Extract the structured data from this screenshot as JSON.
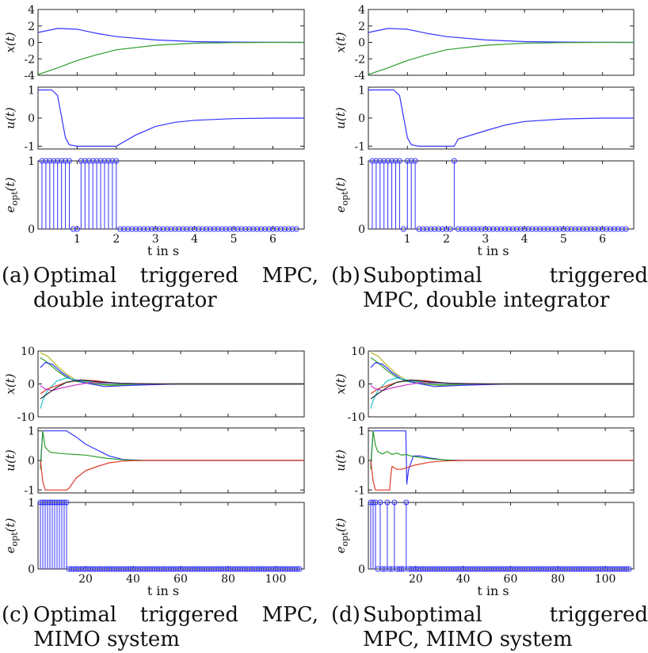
{
  "colors": {
    "blue": "#3333ff",
    "green": "#2e9e2e",
    "red": "#e03a2a",
    "cyan": "#22c5d0",
    "magenta": "#cc33cc",
    "olive": "#b8b82a",
    "dark": "#2a2a2a"
  },
  "labels": {
    "x_label": "x(t)",
    "u_label": "u(t)",
    "e_label": "e",
    "e_sub": "opt",
    "e_tail": "(t)",
    "t_axis": "t in s"
  },
  "captions": [
    {
      "tag": "(a)",
      "line1_words": [
        "Optimal",
        "triggered",
        "MPC,"
      ],
      "line2": "double integrator"
    },
    {
      "tag": "(b)",
      "line1_words": [
        "Suboptimal",
        "triggered"
      ],
      "line2": "MPC, double integrator"
    },
    {
      "tag": "(c)",
      "line1_words": [
        "Optimal",
        "triggered",
        "MPC,"
      ],
      "line2": "MIMO system"
    },
    {
      "tag": "(d)",
      "line1_words": [
        "Suboptimal",
        "triggered"
      ],
      "line2": "MPC, MIMO system"
    }
  ],
  "chart_data": [
    {
      "id": "a",
      "type": "line",
      "x_axis": {
        "xlim": [
          0,
          6.8
        ],
        "xticks": [
          1,
          2,
          3,
          4,
          5,
          6
        ],
        "xlabel": "t in s"
      },
      "state": {
        "ylabel": "x(t)",
        "ylim": [
          -4,
          4
        ],
        "yticks": [
          -4,
          -2,
          0,
          2,
          4
        ],
        "series": [
          {
            "color": "blue",
            "x": [
              0,
              0.5,
              1,
              1.5,
              2,
              3,
              4,
              5,
              6,
              6.8
            ],
            "y": [
              1.2,
              1.7,
              1.6,
              1.1,
              0.7,
              0.3,
              0.1,
              0.04,
              0.01,
              0
            ]
          },
          {
            "color": "green",
            "x": [
              0,
              0.5,
              1,
              1.5,
              2,
              3,
              4,
              5,
              6,
              6.8
            ],
            "y": [
              -3.9,
              -3.1,
              -2.2,
              -1.5,
              -0.9,
              -0.35,
              -0.1,
              -0.03,
              0,
              0
            ]
          }
        ]
      },
      "input": {
        "ylabel": "u(t)",
        "ylim": [
          -1.1,
          1.1
        ],
        "yticks": [
          -1,
          0,
          1
        ],
        "series": [
          {
            "color": "blue",
            "x": [
              0,
              0.3,
              0.35,
              0.5,
              0.7,
              0.8,
              1.0,
              1.5,
              2.0,
              2.5,
              3,
              3.5,
              4,
              5,
              6,
              6.8
            ],
            "y": [
              1,
              1,
              1,
              0.8,
              -0.7,
              -0.95,
              -1,
              -1,
              -1,
              -0.6,
              -0.3,
              -0.15,
              -0.08,
              -0.02,
              0,
              0
            ]
          }
        ]
      },
      "trigger": {
        "ylabel": "e_opt(t)",
        "ylim": [
          0,
          1
        ],
        "yticks": [
          0,
          1
        ],
        "step": 0.1,
        "t_end": 6.6,
        "ones": [
          0.1,
          0.2,
          0.3,
          0.4,
          0.5,
          0.6,
          0.7,
          0.8,
          1.1,
          1.2,
          1.3,
          1.4,
          1.5,
          1.6,
          1.7,
          1.8,
          1.9,
          2.0
        ]
      }
    },
    {
      "id": "b",
      "type": "line",
      "x_axis": {
        "xlim": [
          0,
          6.8
        ],
        "xticks": [
          1,
          2,
          3,
          4,
          5,
          6
        ],
        "xlabel": "t in s"
      },
      "state": {
        "ylabel": "x(t)",
        "ylim": [
          -4,
          4
        ],
        "yticks": [
          -4,
          -2,
          0,
          2,
          4
        ],
        "series": [
          {
            "color": "blue",
            "x": [
              0,
              0.5,
              1,
              1.5,
              2,
              3,
              4,
              5,
              6,
              6.8
            ],
            "y": [
              1.2,
              1.7,
              1.6,
              1.1,
              0.7,
              0.3,
              0.1,
              0.04,
              0.01,
              0
            ]
          },
          {
            "color": "green",
            "x": [
              0,
              0.5,
              1,
              1.5,
              2,
              3,
              4,
              5,
              6,
              6.8
            ],
            "y": [
              -3.9,
              -3.1,
              -2.2,
              -1.5,
              -0.9,
              -0.35,
              -0.1,
              -0.03,
              0,
              0
            ]
          }
        ]
      },
      "input": {
        "ylabel": "u(t)",
        "ylim": [
          -1.1,
          1.1
        ],
        "yticks": [
          -1,
          0,
          1
        ],
        "series": [
          {
            "color": "blue",
            "x": [
              0,
              0.6,
              0.65,
              0.8,
              1.0,
              1.1,
              1.3,
              2.1,
              2.2,
              2.3,
              3,
              3.5,
              4,
              5,
              6,
              6.8
            ],
            "y": [
              1,
              1,
              1,
              0.8,
              -0.7,
              -0.95,
              -1,
              -1,
              -1,
              -0.75,
              -0.45,
              -0.25,
              -0.12,
              -0.03,
              0,
              0
            ]
          }
        ]
      },
      "trigger": {
        "ylabel": "e_opt(t)",
        "ylim": [
          0,
          1
        ],
        "yticks": [
          0,
          1
        ],
        "step": 0.1,
        "t_end": 6.6,
        "ones": [
          0.1,
          0.2,
          0.3,
          0.4,
          0.5,
          0.6,
          0.7,
          0.8,
          1.0,
          1.1,
          1.2,
          2.2
        ]
      }
    },
    {
      "id": "c",
      "type": "line",
      "x_axis": {
        "xlim": [
          0,
          112
        ],
        "xticks": [
          20,
          40,
          60,
          80,
          100
        ],
        "xlabel": "t in s"
      },
      "state": {
        "ylabel": "x(t)",
        "ylim": [
          -10,
          10
        ],
        "yticks": [
          -10,
          0,
          10
        ],
        "series": [
          {
            "color": "olive",
            "x": [
              1,
              4,
              8,
              12,
              16,
              22,
              30,
              40,
              60,
              112
            ],
            "y": [
              9.5,
              8.5,
              5.5,
              3,
              1.2,
              0.3,
              -0.5,
              -0.2,
              0,
              0
            ]
          },
          {
            "color": "green",
            "x": [
              1,
              4,
              8,
              12,
              16,
              22,
              30,
              40,
              60,
              112
            ],
            "y": [
              8,
              6.5,
              4,
              2,
              0.8,
              0.1,
              -0.3,
              -0.1,
              0,
              0
            ]
          },
          {
            "color": "blue",
            "x": [
              1,
              3,
              6,
              10,
              14,
              20,
              28,
              40,
              60,
              112
            ],
            "y": [
              5,
              6.5,
              6,
              3.5,
              1.5,
              0.3,
              -0.8,
              -0.4,
              0,
              0
            ]
          },
          {
            "color": "cyan",
            "x": [
              1,
              2,
              4,
              8,
              12,
              18,
              26,
              40,
              60,
              112
            ],
            "y": [
              -7.5,
              -5,
              -2,
              1,
              1.8,
              1,
              0.2,
              0,
              0,
              0
            ]
          },
          {
            "color": "red",
            "x": [
              1,
              4,
              8,
              12,
              18,
              24,
              32,
              45,
              60,
              112
            ],
            "y": [
              -3,
              -1.5,
              -0.5,
              0.5,
              1.2,
              1,
              0.3,
              0,
              0,
              0
            ]
          },
          {
            "color": "magenta",
            "x": [
              1,
              3,
              6,
              10,
              16,
              22,
              30,
              45,
              60,
              112
            ],
            "y": [
              -0.5,
              -1.5,
              -2,
              -1.2,
              -0.3,
              0.4,
              0.3,
              0,
              0,
              0
            ]
          },
          {
            "color": "dark",
            "x": [
              1,
              4,
              8,
              12,
              18,
              26,
              35,
              50,
              112
            ],
            "y": [
              -4.5,
              -3,
              -1,
              0.5,
              1.2,
              0.6,
              0.2,
              0,
              0
            ]
          }
        ]
      },
      "input": {
        "ylabel": "u(t)",
        "ylim": [
          -1.1,
          1.1
        ],
        "yticks": [
          -1,
          0,
          1
        ],
        "series": [
          {
            "color": "blue",
            "x": [
              1,
              2,
              12,
              13,
              16,
              20,
              25,
              30,
              36,
              45,
              112
            ],
            "y": [
              -0.2,
              1,
              1,
              0.95,
              0.8,
              0.55,
              0.35,
              0.15,
              0.03,
              0,
              0
            ]
          },
          {
            "color": "green",
            "x": [
              1,
              2,
              3,
              5,
              8,
              12,
              16,
              20,
              28,
              36,
              45,
              112
            ],
            "y": [
              -0.3,
              1,
              0.45,
              0.28,
              0.25,
              0.22,
              0.2,
              0.18,
              0.08,
              0.02,
              0,
              0
            ]
          },
          {
            "color": "red",
            "x": [
              1,
              2,
              3,
              12,
              13,
              16,
              20,
              25,
              30,
              36,
              45,
              112
            ],
            "y": [
              0,
              -0.7,
              -1,
              -1,
              -0.95,
              -0.6,
              -0.35,
              -0.2,
              -0.08,
              -0.02,
              0,
              0
            ]
          }
        ]
      },
      "trigger": {
        "ylabel": "e_opt(t)",
        "ylim": [
          0,
          1
        ],
        "yticks": [
          0,
          1
        ],
        "step": 1,
        "t_end": 110,
        "ones": [
          1,
          2,
          3,
          4,
          5,
          6,
          7,
          8,
          9,
          10,
          11,
          12
        ]
      }
    },
    {
      "id": "d",
      "type": "line",
      "x_axis": {
        "xlim": [
          0,
          112
        ],
        "xticks": [
          20,
          40,
          60,
          80,
          100
        ],
        "xlabel": "t in s"
      },
      "state": {
        "ylabel": "x(t)",
        "ylim": [
          -10,
          10
        ],
        "yticks": [
          -10,
          0,
          10
        ],
        "series": [
          {
            "color": "olive",
            "x": [
              1,
              4,
              8,
              12,
              16,
              22,
              30,
              40,
              60,
              112
            ],
            "y": [
              9.5,
              8.5,
              5.5,
              3,
              1.2,
              0.3,
              -0.5,
              -0.2,
              0,
              0
            ]
          },
          {
            "color": "green",
            "x": [
              1,
              4,
              8,
              12,
              16,
              22,
              30,
              40,
              60,
              112
            ],
            "y": [
              8,
              6.5,
              4,
              2,
              0.8,
              0.1,
              -0.3,
              -0.1,
              0,
              0
            ]
          },
          {
            "color": "blue",
            "x": [
              1,
              3,
              6,
              10,
              14,
              20,
              28,
              40,
              60,
              112
            ],
            "y": [
              5,
              6.5,
              6,
              3.5,
              1.5,
              0.3,
              -0.8,
              -0.4,
              0,
              0
            ]
          },
          {
            "color": "cyan",
            "x": [
              1,
              2,
              4,
              8,
              12,
              18,
              26,
              40,
              60,
              112
            ],
            "y": [
              -7.5,
              -5,
              -2,
              1,
              1.8,
              1,
              0.2,
              0,
              0,
              0
            ]
          },
          {
            "color": "red",
            "x": [
              1,
              4,
              8,
              12,
              18,
              24,
              32,
              45,
              60,
              112
            ],
            "y": [
              -3,
              -1.5,
              -0.5,
              0.5,
              1.2,
              1,
              0.3,
              0,
              0,
              0
            ]
          },
          {
            "color": "magenta",
            "x": [
              1,
              3,
              6,
              10,
              16,
              22,
              30,
              45,
              60,
              112
            ],
            "y": [
              -0.5,
              -1.5,
              -2,
              -1.2,
              -0.3,
              0.4,
              0.3,
              0,
              0,
              0
            ]
          },
          {
            "color": "dark",
            "x": [
              1,
              4,
              8,
              12,
              18,
              26,
              35,
              50,
              112
            ],
            "y": [
              -4.5,
              -3,
              -1,
              0.5,
              1.2,
              0.6,
              0.2,
              0,
              0
            ]
          }
        ]
      },
      "input": {
        "ylabel": "u(t)",
        "ylim": [
          -1.1,
          1.1
        ],
        "yticks": [
          -1,
          0,
          1
        ],
        "series": [
          {
            "color": "blue",
            "x": [
              1,
              2,
              12,
              13,
              15.8,
              16.2,
              17,
              19,
              22,
              26,
              32,
              40,
              112
            ],
            "y": [
              -0.2,
              1,
              1,
              1,
              1,
              -0.8,
              -0.3,
              0.15,
              0.15,
              0.08,
              0.02,
              0,
              0
            ]
          },
          {
            "color": "green",
            "x": [
              1,
              2,
              3,
              4,
              6,
              8,
              10,
              12,
              14,
              16,
              18,
              22,
              28,
              36,
              112
            ],
            "y": [
              -0.3,
              1,
              0.5,
              0.3,
              0.22,
              0.3,
              0.2,
              0.25,
              0.18,
              0.2,
              0.15,
              0.1,
              0.04,
              0,
              0
            ]
          },
          {
            "color": "red",
            "x": [
              1,
              2,
              3,
              9,
              9.5,
              10,
              12,
              14,
              16,
              20,
              26,
              32,
              40,
              112
            ],
            "y": [
              0,
              -0.7,
              -1,
              -1,
              -0.5,
              -0.2,
              -0.3,
              -0.3,
              -0.25,
              -0.15,
              -0.06,
              -0.02,
              0,
              0
            ]
          }
        ]
      },
      "trigger": {
        "ylabel": "e_opt(t)",
        "ylim": [
          0,
          1
        ],
        "yticks": [
          0,
          1
        ],
        "step": 1,
        "t_end": 110,
        "ones": [
          1,
          2,
          3,
          5,
          8,
          11,
          16
        ]
      }
    }
  ]
}
